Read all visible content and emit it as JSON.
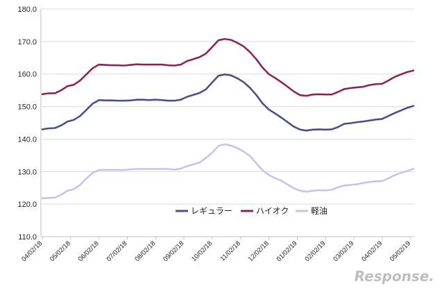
{
  "chart_data": {
    "type": "line",
    "title": "",
    "xlabel": "",
    "ylabel": "",
    "ylim": [
      110,
      180
    ],
    "yticks": [
      "110.0",
      "120.0",
      "130.0",
      "140.0",
      "150.0",
      "160.0",
      "170.0",
      "180.0"
    ],
    "xticks": [
      "04/02/18",
      "05/02/18",
      "06/02/18",
      "07/02/18",
      "08/02/18",
      "09/02/18",
      "10/02/18",
      "11/02/18",
      "12/02/18",
      "01/02/19",
      "02/02/19",
      "03/02/19",
      "04/02/19",
      "05/02/19"
    ],
    "grid": "horizontal",
    "legend_position": "bottom-center",
    "series": [
      {
        "name": "レギュラー",
        "color": "#4a4f8c",
        "values": [
          143.0,
          143.3,
          143.4,
          144.2,
          145.4,
          145.9,
          147.1,
          149.0,
          150.9,
          152.0,
          151.9,
          151.9,
          151.8,
          151.8,
          151.9,
          152.1,
          152.1,
          152.0,
          152.1,
          152.0,
          151.8,
          151.8,
          152.1,
          153.0,
          153.6,
          154.2,
          155.3,
          157.4,
          159.5,
          159.9,
          159.6,
          158.7,
          157.5,
          155.8,
          153.6,
          151.0,
          149.1,
          147.9,
          146.6,
          145.2,
          143.8,
          142.9,
          142.6,
          142.9,
          143.0,
          142.9,
          143.0,
          143.7,
          144.7,
          144.9,
          145.2,
          145.4,
          145.7,
          146.0,
          146.2,
          147.1,
          148.0,
          148.8,
          149.6,
          150.2
        ]
      },
      {
        "name": "ハイオク",
        "color": "#8b2455",
        "values": [
          153.8,
          154.1,
          154.1,
          155.0,
          156.3,
          156.7,
          158.0,
          159.9,
          161.8,
          162.9,
          162.8,
          162.7,
          162.7,
          162.6,
          162.8,
          163.0,
          162.9,
          162.9,
          162.9,
          162.9,
          162.7,
          162.6,
          162.9,
          164.0,
          164.6,
          165.2,
          166.3,
          168.3,
          170.4,
          170.8,
          170.5,
          169.6,
          168.5,
          166.8,
          164.6,
          162.0,
          160.0,
          158.8,
          157.5,
          156.1,
          154.6,
          153.5,
          153.3,
          153.7,
          153.8,
          153.7,
          153.7,
          154.5,
          155.4,
          155.7,
          155.9,
          156.1,
          156.6,
          156.9,
          157.0,
          158.0,
          159.1,
          159.9,
          160.6,
          161.1
        ]
      },
      {
        "name": "軽油",
        "color": "#c3c4ee",
        "values": [
          121.8,
          121.9,
          122.0,
          122.9,
          124.1,
          124.6,
          125.9,
          127.9,
          129.6,
          130.5,
          130.5,
          130.5,
          130.5,
          130.5,
          130.7,
          130.8,
          130.8,
          130.8,
          130.8,
          130.8,
          130.8,
          130.6,
          130.9,
          131.7,
          132.2,
          132.8,
          134.2,
          135.8,
          137.9,
          138.4,
          138.0,
          137.2,
          136.2,
          134.8,
          132.6,
          130.4,
          129.0,
          128.0,
          127.2,
          126.0,
          124.9,
          124.1,
          123.8,
          124.1,
          124.3,
          124.2,
          124.4,
          125.2,
          125.7,
          125.9,
          126.1,
          126.5,
          126.8,
          127.0,
          127.1,
          127.9,
          128.9,
          129.6,
          130.2,
          130.9
        ]
      }
    ]
  },
  "watermark": {
    "text": "Response."
  }
}
